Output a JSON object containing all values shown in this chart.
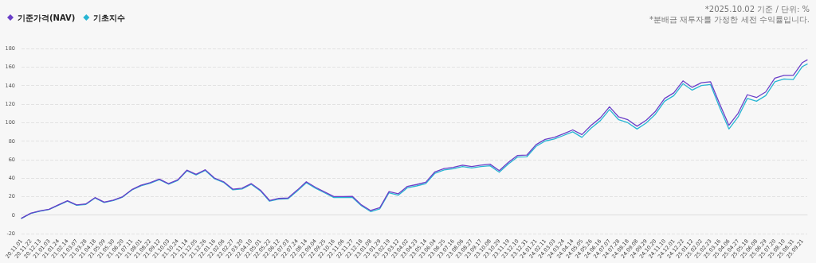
{
  "chart_data": {
    "type": "line",
    "annotations": [
      "*2025.10.02 기준 / 단위: %",
      "*분배금 재투자를 가정한 세전 수익률입니다."
    ],
    "x": [
      "2020-11-01",
      "2020-11-22",
      "2020-12-13",
      "2021-01-03",
      "2021-01-24",
      "2021-02-14",
      "2021-03-07",
      "2021-03-28",
      "2021-04-18",
      "2021-05-09",
      "2021-05-30",
      "2021-06-20",
      "2021-07-11",
      "2021-08-01",
      "2021-08-22",
      "2021-09-12",
      "2021-10-03",
      "2021-10-24",
      "2021-11-14",
      "2021-12-05",
      "2021-12-26",
      "2022-01-16",
      "2022-02-06",
      "2022-02-27",
      "2022-03-20",
      "2022-04-10",
      "2022-05-01",
      "2022-05-22",
      "2022-06-12",
      "2022-07-03",
      "2022-07-24",
      "2022-08-14",
      "2022-09-04",
      "2022-09-25",
      "2022-10-16",
      "2022-11-06",
      "2022-11-27",
      "2022-12-18",
      "2023-01-08",
      "2023-01-29",
      "2023-02-19",
      "2023-03-12",
      "2023-04-02",
      "2023-04-23",
      "2023-05-14",
      "2023-06-04",
      "2023-06-25",
      "2023-07-16",
      "2023-08-06",
      "2023-08-27",
      "2023-09-17",
      "2023-10-08",
      "2023-10-29",
      "2023-11-19",
      "2023-12-10",
      "2023-12-31",
      "2024-01-21",
      "2024-02-11",
      "2024-03-03",
      "2024-03-24",
      "2024-04-14",
      "2024-05-05",
      "2024-05-26",
      "2024-06-16",
      "2024-07-07",
      "2024-07-28",
      "2024-08-18",
      "2024-09-08",
      "2024-09-29",
      "2024-10-20",
      "2024-11-10",
      "2024-12-01",
      "2024-12-22",
      "2025-01-12",
      "2025-02-02",
      "2025-02-23",
      "2025-03-16",
      "2025-04-06",
      "2025-04-27",
      "2025-05-18",
      "2025-06-08",
      "2025-06-29",
      "2025-07-20",
      "2025-08-10",
      "2025-08-31",
      "2025-09-21",
      "2025-10-02"
    ],
    "series": [
      {
        "name": "기준가격(NAV)",
        "color": "#6a3fc8",
        "values": [
          -3.4,
          2,
          4.5,
          6.3,
          11,
          15.5,
          11,
          12,
          18.9,
          14,
          16.2,
          19.9,
          27.5,
          32.2,
          35,
          38.9,
          34,
          38,
          48.5,
          44,
          49,
          40,
          36,
          28,
          29,
          34,
          27,
          15.8,
          18,
          18.4,
          26.9,
          36,
          30,
          25,
          20,
          20,
          20.3,
          11,
          4.9,
          8,
          25.4,
          23,
          31,
          33,
          35.5,
          46.7,
          50.2,
          51.6,
          54,
          52.5,
          54,
          55,
          48,
          57,
          64.5,
          64.8,
          76,
          81.8,
          84,
          87.8,
          92,
          87,
          97,
          105,
          117,
          106,
          103,
          96,
          102.5,
          112,
          126,
          132,
          145,
          138,
          143,
          144,
          120,
          97,
          110,
          130,
          127,
          133,
          148,
          151,
          151,
          164.8,
          167.6
        ]
      },
      {
        "name": "기초지수",
        "color": "#27b5d3",
        "values": [
          -3.6,
          1.7,
          4.2,
          6,
          10.6,
          15,
          10.6,
          11.5,
          18.4,
          13.5,
          15.7,
          19.4,
          27,
          31.6,
          34.4,
          38.3,
          33.4,
          37.4,
          47.8,
          43.3,
          48.3,
          39.3,
          35.3,
          27.3,
          28.2,
          33.2,
          26.2,
          15,
          17.2,
          17.6,
          26,
          35,
          29,
          24,
          19,
          19,
          19.2,
          10,
          3.8,
          6.8,
          24.2,
          21.5,
          29.5,
          31.5,
          34,
          45.2,
          48.7,
          50,
          52.4,
          51,
          52.4,
          53.3,
          46.3,
          55.3,
          62.8,
          63,
          74.2,
          80,
          82.2,
          86,
          90,
          84,
          94,
          102,
          114,
          103,
          99.8,
          93,
          99.5,
          109,
          123,
          129,
          142,
          135,
          140,
          141,
          116,
          93,
          106,
          126,
          123,
          129,
          144,
          147,
          146.5,
          160.5,
          163.2
        ]
      }
    ],
    "xlim": [
      "2020-11-01",
      "2025-10-02"
    ],
    "xticks": [
      {
        "value": "2020-11-01",
        "label": "20.11.01"
      },
      {
        "value": "2020-11-22",
        "label": "20.11.22"
      },
      {
        "value": "2020-12-13",
        "label": "20.12.13"
      },
      {
        "value": "2021-01-03",
        "label": "21.01.03"
      },
      {
        "value": "2021-01-24",
        "label": "21.01.24"
      },
      {
        "value": "2021-02-14",
        "label": "21.02.14"
      },
      {
        "value": "2021-03-07",
        "label": "21.03.07"
      },
      {
        "value": "2021-03-28",
        "label": "21.03.28"
      },
      {
        "value": "2021-04-18",
        "label": "21.04.18"
      },
      {
        "value": "2021-05-09",
        "label": "21.05.09"
      },
      {
        "value": "2021-05-30",
        "label": "21.05.30"
      },
      {
        "value": "2021-06-20",
        "label": "21.06.20"
      },
      {
        "value": "2021-07-11",
        "label": "21.07.11"
      },
      {
        "value": "2021-08-01",
        "label": "21.08.01"
      },
      {
        "value": "2021-08-22",
        "label": "21.08.22"
      },
      {
        "value": "2021-09-12",
        "label": "21.09.12"
      },
      {
        "value": "2021-10-03",
        "label": "21.10.03"
      },
      {
        "value": "2021-10-24",
        "label": "21.10.24"
      },
      {
        "value": "2021-11-14",
        "label": "21.11.14"
      },
      {
        "value": "2021-12-05",
        "label": "21.12.05"
      },
      {
        "value": "2021-12-26",
        "label": "21.12.26"
      },
      {
        "value": "2022-01-16",
        "label": "22.01.16"
      },
      {
        "value": "2022-02-06",
        "label": "22.02.06"
      },
      {
        "value": "2022-02-27",
        "label": "22.02.27"
      },
      {
        "value": "2022-03-20",
        "label": "22.03.20"
      },
      {
        "value": "2022-04-10",
        "label": "22.04.10"
      },
      {
        "value": "2022-05-01",
        "label": "22.05.01"
      },
      {
        "value": "2022-05-22",
        "label": "22.05.22"
      },
      {
        "value": "2022-06-12",
        "label": "22.06.12"
      },
      {
        "value": "2022-07-03",
        "label": "22.07.03"
      },
      {
        "value": "2022-07-24",
        "label": "22.07.24"
      },
      {
        "value": "2022-08-14",
        "label": "22.08.14"
      },
      {
        "value": "2022-09-04",
        "label": "22.09.04"
      },
      {
        "value": "2022-09-25",
        "label": "22.09.25"
      },
      {
        "value": "2022-10-16",
        "label": "22.10.16"
      },
      {
        "value": "2022-11-06",
        "label": "22.11.06"
      },
      {
        "value": "2022-11-27",
        "label": "22.11.27"
      },
      {
        "value": "2022-12-18",
        "label": "22.12.18"
      },
      {
        "value": "2023-01-08",
        "label": "23.01.08"
      },
      {
        "value": "2023-01-29",
        "label": "23.01.29"
      },
      {
        "value": "2023-02-19",
        "label": "23.02.19"
      },
      {
        "value": "2023-03-12",
        "label": "23.03.12"
      },
      {
        "value": "2023-04-02",
        "label": "23.04.02"
      },
      {
        "value": "2023-04-23",
        "label": "23.04.23"
      },
      {
        "value": "2023-05-14",
        "label": "23.05.14"
      },
      {
        "value": "2023-06-04",
        "label": "23.06.04"
      },
      {
        "value": "2023-06-25",
        "label": "23.06.25"
      },
      {
        "value": "2023-07-16",
        "label": "23.07.16"
      },
      {
        "value": "2023-08-06",
        "label": "23.08.06"
      },
      {
        "value": "2023-08-27",
        "label": "23.08.27"
      },
      {
        "value": "2023-09-17",
        "label": "23.09.17"
      },
      {
        "value": "2023-10-08",
        "label": "23.10.08"
      },
      {
        "value": "2023-10-29",
        "label": "23.10.29"
      },
      {
        "value": "2023-11-19",
        "label": "23.11.19"
      },
      {
        "value": "2023-12-10",
        "label": "23.12.10"
      },
      {
        "value": "2023-12-31",
        "label": "23.12.31"
      },
      {
        "value": "2024-01-21",
        "label": "24.01.21"
      },
      {
        "value": "2024-02-11",
        "label": "24.02.11"
      },
      {
        "value": "2024-03-03",
        "label": "24.03.03"
      },
      {
        "value": "2024-03-24",
        "label": "24.03.24"
      },
      {
        "value": "2024-04-14",
        "label": "24.04.14"
      },
      {
        "value": "2024-05-05",
        "label": "24.05.05"
      },
      {
        "value": "2024-05-26",
        "label": "24.05.26"
      },
      {
        "value": "2024-06-16",
        "label": "24.06.16"
      },
      {
        "value": "2024-07-07",
        "label": "24.07.07"
      },
      {
        "value": "2024-07-28",
        "label": "24.07.28"
      },
      {
        "value": "2024-08-18",
        "label": "24.08.18"
      },
      {
        "value": "2024-09-08",
        "label": "24.09.08"
      },
      {
        "value": "2024-09-29",
        "label": "24.09.29"
      },
      {
        "value": "2024-10-20",
        "label": "24.10.20"
      },
      {
        "value": "2024-11-10",
        "label": "24.11.10"
      },
      {
        "value": "2024-12-01",
        "label": "24.12.01"
      },
      {
        "value": "2024-12-22",
        "label": "24.12.22"
      },
      {
        "value": "2025-01-12",
        "label": "25.01.12"
      },
      {
        "value": "2025-02-02",
        "label": "25.02.02"
      },
      {
        "value": "2025-02-23",
        "label": "25.02.23"
      },
      {
        "value": "2025-03-16",
        "label": "25.03.16"
      },
      {
        "value": "2025-04-06",
        "label": "25.04.06"
      },
      {
        "value": "2025-04-27",
        "label": "25.04.27"
      },
      {
        "value": "2025-05-18",
        "label": "25.05.18"
      },
      {
        "value": "2025-06-08",
        "label": "25.06.08"
      },
      {
        "value": "2025-06-29",
        "label": "25.06.29"
      },
      {
        "value": "2025-07-20",
        "label": "25.07.20"
      },
      {
        "value": "2025-08-10",
        "label": "25.08.10"
      },
      {
        "value": "2025-08-31",
        "label": "25.08.31"
      },
      {
        "value": "2025-09-21",
        "label": "25.09.21"
      }
    ],
    "ylim": [
      -20,
      180
    ],
    "yticks": [
      -20,
      0,
      20,
      40,
      60,
      80,
      100,
      120,
      140,
      160,
      180
    ],
    "grid": "y",
    "legend": "top left",
    "marker": "none",
    "line_style": "solid"
  }
}
